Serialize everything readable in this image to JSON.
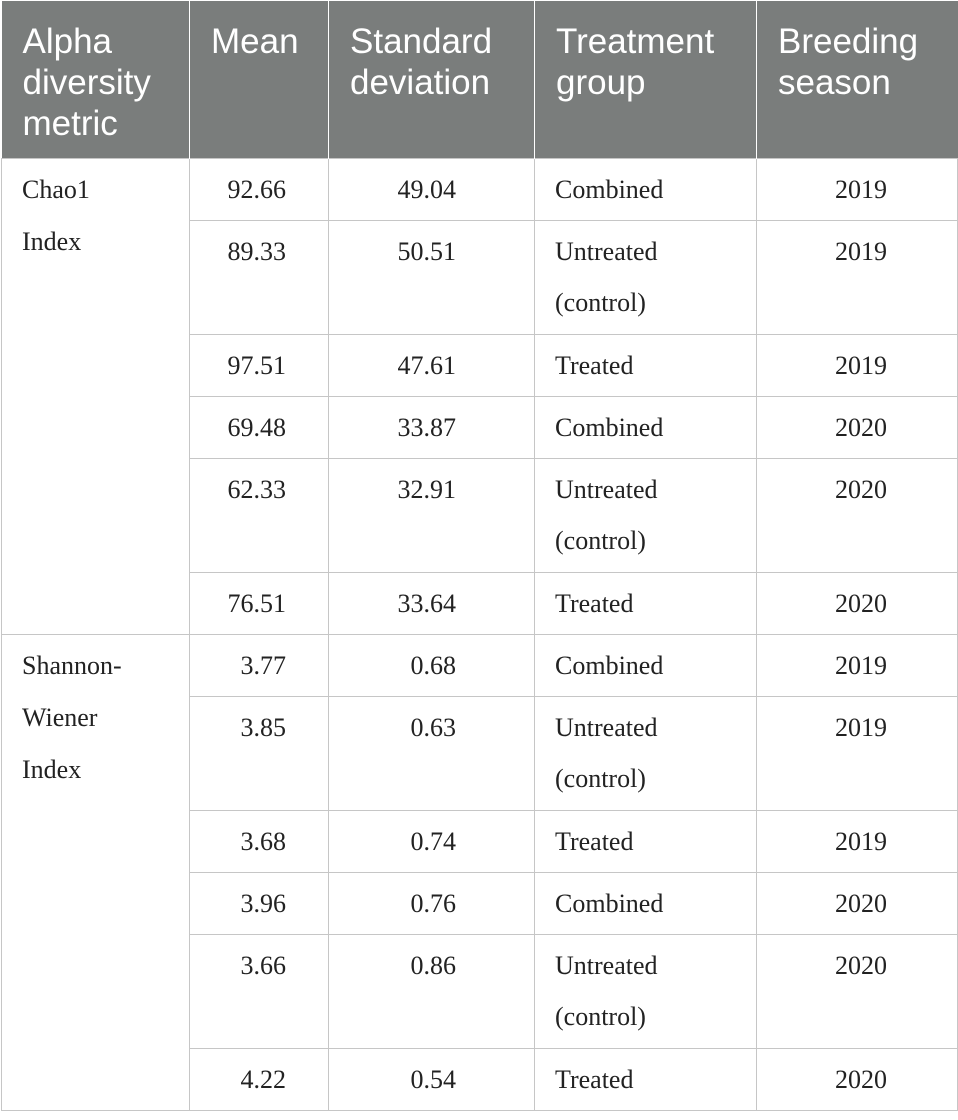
{
  "table": {
    "headers": [
      "Alpha diversity metric",
      "Mean",
      "Standard deviation",
      "Treatment group",
      "Breeding season"
    ],
    "header_lines": [
      [
        "Alpha",
        "diversity",
        "metric"
      ],
      [
        "Mean"
      ],
      [
        "Standard",
        "deviation"
      ],
      [
        "Treatment",
        "group"
      ],
      [
        "Breeding",
        "season"
      ]
    ],
    "groups": [
      {
        "metric": "Chao1 Index",
        "metric_lines": [
          "Chao1",
          "Index"
        ],
        "rows": [
          {
            "mean": "92.66",
            "sd": "49.04",
            "group": "Combined",
            "group_lines": [
              "Combined"
            ],
            "season": "2019"
          },
          {
            "mean": "89.33",
            "sd": "50.51",
            "group": "Untreated (control)",
            "group_lines": [
              "Untreated",
              "(control)"
            ],
            "season": "2019"
          },
          {
            "mean": "97.51",
            "sd": "47.61",
            "group": "Treated",
            "group_lines": [
              "Treated"
            ],
            "season": "2019"
          },
          {
            "mean": "69.48",
            "sd": "33.87",
            "group": "Combined",
            "group_lines": [
              "Combined"
            ],
            "season": "2020"
          },
          {
            "mean": "62.33",
            "sd": "32.91",
            "group": "Untreated (control)",
            "group_lines": [
              "Untreated",
              "(control)"
            ],
            "season": "2020"
          },
          {
            "mean": "76.51",
            "sd": "33.64",
            "group": "Treated",
            "group_lines": [
              "Treated"
            ],
            "season": "2020"
          }
        ]
      },
      {
        "metric": "Shannon-Wiener Index",
        "metric_lines": [
          "Shannon-",
          "Wiener",
          "Index"
        ],
        "rows": [
          {
            "mean": "3.77",
            "sd": "0.68",
            "group": "Combined",
            "group_lines": [
              "Combined"
            ],
            "season": "2019"
          },
          {
            "mean": "3.85",
            "sd": "0.63",
            "group": "Untreated (control)",
            "group_lines": [
              "Untreated",
              "(control)"
            ],
            "season": "2019"
          },
          {
            "mean": "3.68",
            "sd": "0.74",
            "group": "Treated",
            "group_lines": [
              "Treated"
            ],
            "season": "2019"
          },
          {
            "mean": "3.96",
            "sd": "0.76",
            "group": "Combined",
            "group_lines": [
              "Combined"
            ],
            "season": "2020"
          },
          {
            "mean": "3.66",
            "sd": "0.86",
            "group": "Untreated (control)",
            "group_lines": [
              "Untreated",
              "(control)"
            ],
            "season": "2020"
          },
          {
            "mean": "4.22",
            "sd": "0.54",
            "group": "Treated",
            "group_lines": [
              "Treated"
            ],
            "season": "2020"
          }
        ]
      }
    ]
  }
}
